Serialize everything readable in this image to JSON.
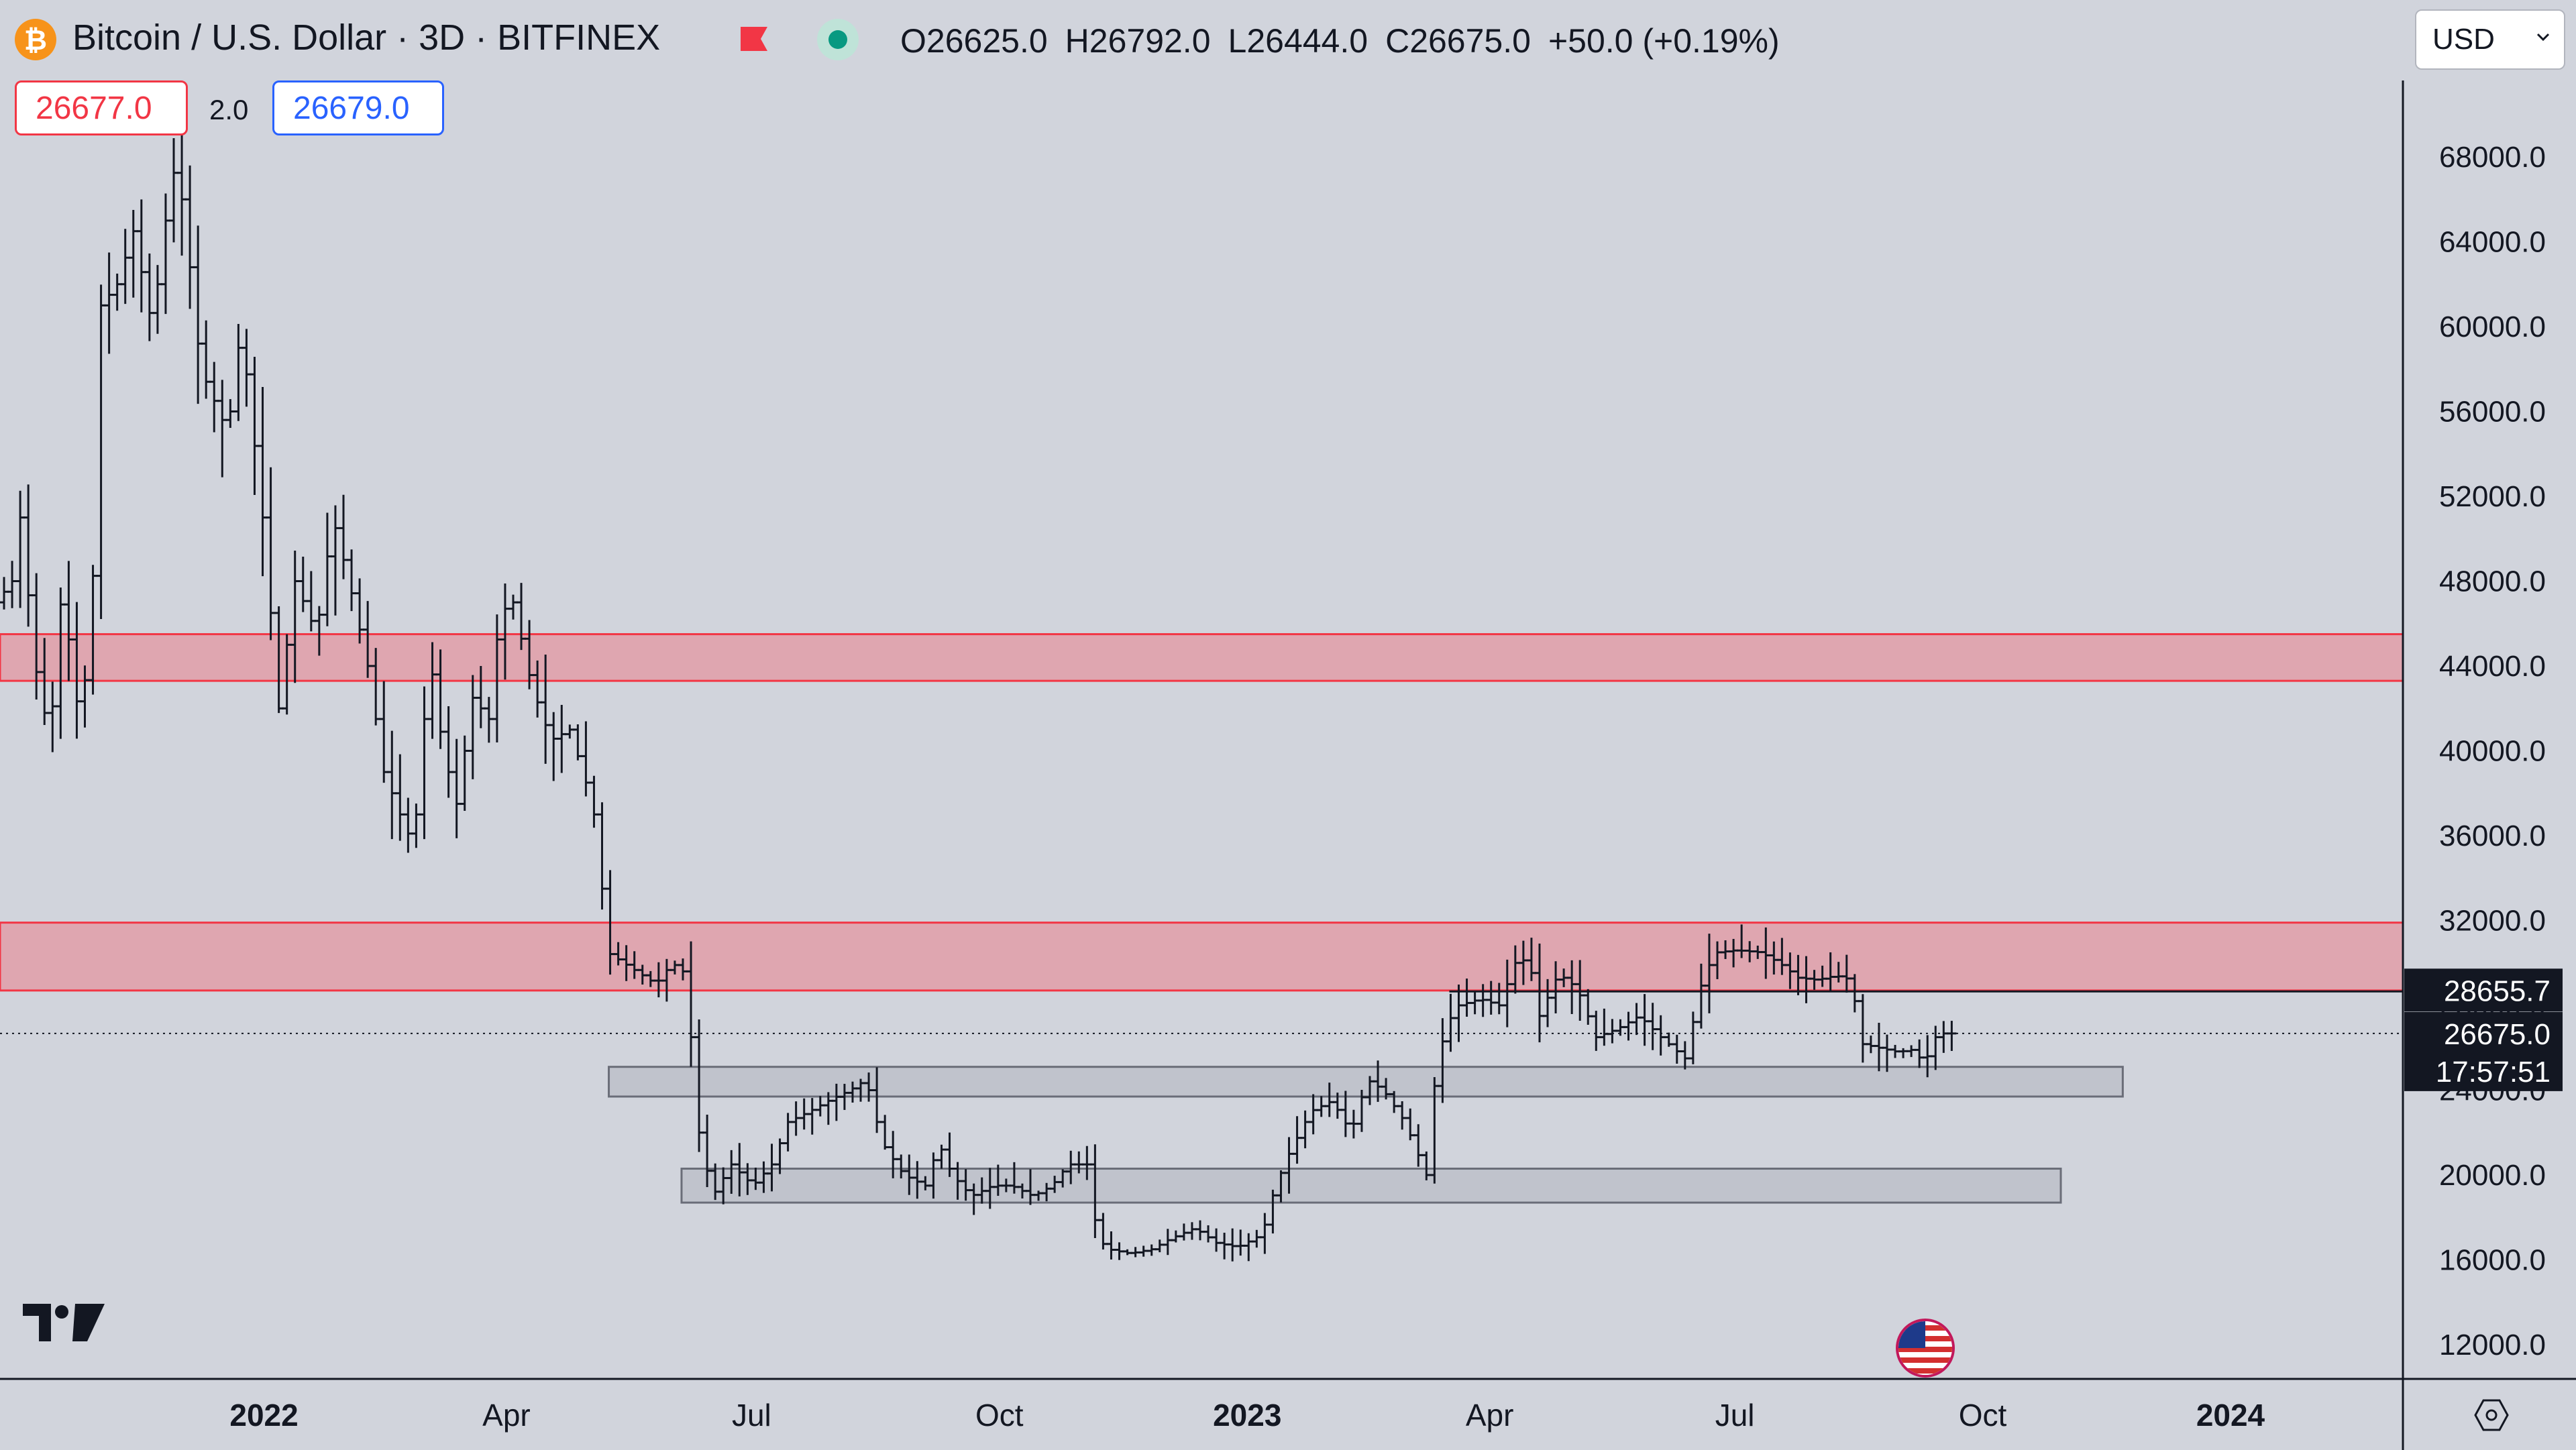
{
  "header": {
    "symbol_title": "Bitcoin / U.S. Dollar · 3D · BITFINEX",
    "logo_glyph": "₿",
    "ohlc": {
      "open_label": "O",
      "open": "26625.0",
      "high_label": "H",
      "high": "26792.0",
      "low_label": "L",
      "low": "26444.0",
      "close_label": "C",
      "close": "26675.0",
      "change": "+50.0 (+0.19%)"
    },
    "currency": "USD",
    "sell_price": "26677.0",
    "spread": "2.0",
    "buy_price": "26679.0"
  },
  "colors": {
    "background": "#d1d4dc",
    "candle": "#131722",
    "resistance_zone_fill": "#dfa6b0",
    "resistance_zone_border": "#f23645",
    "support_zone_fill": "#c0c3cc",
    "support_zone_border": "#6a6d78",
    "sell": "#f23645",
    "buy": "#2962ff"
  },
  "chart_data": {
    "type": "ohlc",
    "timeframe": "3D",
    "x_axis_labels": [
      {
        "date": "2022-01-01",
        "label": "2022",
        "bold": true
      },
      {
        "date": "2022-04-01",
        "label": "Apr",
        "bold": false
      },
      {
        "date": "2022-07-01",
        "label": "Jul",
        "bold": false
      },
      {
        "date": "2022-10-01",
        "label": "Oct",
        "bold": false
      },
      {
        "date": "2023-01-01",
        "label": "2023",
        "bold": true
      },
      {
        "date": "2023-04-01",
        "label": "Apr",
        "bold": false
      },
      {
        "date": "2023-07-01",
        "label": "Jul",
        "bold": false
      },
      {
        "date": "2023-10-01",
        "label": "Oct",
        "bold": false
      },
      {
        "date": "2024-01-01",
        "label": "2024",
        "bold": true
      }
    ],
    "x_range": [
      "2021-09-25",
      "2024-03-05"
    ],
    "y_range": [
      10000,
      71500
    ],
    "y_ticks": [
      "12000.0",
      "16000.0",
      "20000.0",
      "24000.0",
      "28000.0",
      "32000.0",
      "36000.0",
      "40000.0",
      "44000.0",
      "48000.0",
      "52000.0",
      "56000.0",
      "60000.0",
      "64000.0",
      "68000.0"
    ],
    "price_path": [
      [
        "2021-09-25",
        47000
      ],
      [
        "2021-10-01",
        48000
      ],
      [
        "2021-10-05",
        52000
      ],
      [
        "2021-10-08",
        45000
      ],
      [
        "2021-10-15",
        40500
      ],
      [
        "2021-10-20",
        48500
      ],
      [
        "2021-10-24",
        42000
      ],
      [
        "2021-10-30",
        44000
      ],
      [
        "2021-11-03",
        61000
      ],
      [
        "2021-11-09",
        62000
      ],
      [
        "2021-11-15",
        64500
      ],
      [
        "2021-11-22",
        60000
      ],
      [
        "2021-11-27",
        65000
      ],
      [
        "2021-12-01",
        68000
      ],
      [
        "2021-12-05",
        64000
      ],
      [
        "2021-12-10",
        58000
      ],
      [
        "2021-12-20",
        55000
      ],
      [
        "2021-12-25",
        60000
      ],
      [
        "2022-01-02",
        51000
      ],
      [
        "2022-01-08",
        42000
      ],
      [
        "2022-01-14",
        48000
      ],
      [
        "2022-01-22",
        45500
      ],
      [
        "2022-01-28",
        51000
      ],
      [
        "2022-02-03",
        48000
      ],
      [
        "2022-02-10",
        44000
      ],
      [
        "2022-02-16",
        39000
      ],
      [
        "2022-02-22",
        37000
      ],
      [
        "2022-02-27",
        35500
      ],
      [
        "2022-03-05",
        44500
      ],
      [
        "2022-03-10",
        40000
      ],
      [
        "2022-03-15",
        37500
      ],
      [
        "2022-03-21",
        42500
      ],
      [
        "2022-03-27",
        41500
      ],
      [
        "2022-03-31",
        46500
      ],
      [
        "2022-04-05",
        47000
      ],
      [
        "2022-04-12",
        43000
      ],
      [
        "2022-04-19",
        40500
      ],
      [
        "2022-04-26",
        41000
      ],
      [
        "2022-05-02",
        38500
      ],
      [
        "2022-05-06",
        36500
      ],
      [
        "2022-05-10",
        30500
      ],
      [
        "2022-05-16",
        30000
      ],
      [
        "2022-05-22",
        29500
      ],
      [
        "2022-05-28",
        29000
      ],
      [
        "2022-06-03",
        30000
      ],
      [
        "2022-06-08",
        29500
      ],
      [
        "2022-06-13",
        22000
      ],
      [
        "2022-06-18",
        19000
      ],
      [
        "2022-06-25",
        20500
      ],
      [
        "2022-07-03",
        19500
      ],
      [
        "2022-07-10",
        20500
      ],
      [
        "2022-07-16",
        22500
      ],
      [
        "2022-07-24",
        23000
      ],
      [
        "2022-07-31",
        23500
      ],
      [
        "2022-08-08",
        24000
      ],
      [
        "2022-08-14",
        24500
      ],
      [
        "2022-08-20",
        21500
      ],
      [
        "2022-08-28",
        20000
      ],
      [
        "2022-09-05",
        19500
      ],
      [
        "2022-09-10",
        21500
      ],
      [
        "2022-09-15",
        20000
      ],
      [
        "2022-09-22",
        19000
      ],
      [
        "2022-09-30",
        19500
      ],
      [
        "2022-10-07",
        19500
      ],
      [
        "2022-10-15",
        19000
      ],
      [
        "2022-10-22",
        19500
      ],
      [
        "2022-10-28",
        20500
      ],
      [
        "2022-11-04",
        20500
      ],
      [
        "2022-11-08",
        17000
      ],
      [
        "2022-11-12",
        16500
      ],
      [
        "2022-11-20",
        16300
      ],
      [
        "2022-11-28",
        16500
      ],
      [
        "2022-12-05",
        17000
      ],
      [
        "2022-12-14",
        17500
      ],
      [
        "2022-12-22",
        16800
      ],
      [
        "2022-12-30",
        16600
      ],
      [
        "2023-01-08",
        17200
      ],
      [
        "2023-01-13",
        19500
      ],
      [
        "2023-01-18",
        21000
      ],
      [
        "2023-01-26",
        23000
      ],
      [
        "2023-02-03",
        23500
      ],
      [
        "2023-02-10",
        22000
      ],
      [
        "2023-02-16",
        24500
      ],
      [
        "2023-02-22",
        24000
      ],
      [
        "2023-03-02",
        22500
      ],
      [
        "2023-03-10",
        20000
      ],
      [
        "2023-03-13",
        24200
      ],
      [
        "2023-03-17",
        27000
      ],
      [
        "2023-03-22",
        28000
      ],
      [
        "2023-03-30",
        28300
      ],
      [
        "2023-04-06",
        28000
      ],
      [
        "2023-04-12",
        30000
      ],
      [
        "2023-04-17",
        30200
      ],
      [
        "2023-04-21",
        27500
      ],
      [
        "2023-04-28",
        29500
      ],
      [
        "2023-05-05",
        28800
      ],
      [
        "2023-05-12",
        26500
      ],
      [
        "2023-05-20",
        26900
      ],
      [
        "2023-05-28",
        27500
      ],
      [
        "2023-06-05",
        26500
      ],
      [
        "2023-06-14",
        25500
      ],
      [
        "2023-06-21",
        29500
      ],
      [
        "2023-06-26",
        30500
      ],
      [
        "2023-07-03",
        30600
      ],
      [
        "2023-07-12",
        30500
      ],
      [
        "2023-07-19",
        30000
      ],
      [
        "2023-07-26",
        29300
      ],
      [
        "2023-08-02",
        29200
      ],
      [
        "2023-08-09",
        29400
      ],
      [
        "2023-08-15",
        29200
      ],
      [
        "2023-08-18",
        26200
      ],
      [
        "2023-08-25",
        26000
      ],
      [
        "2023-09-01",
        25800
      ],
      [
        "2023-09-06",
        25900
      ],
      [
        "2023-09-11",
        25300
      ],
      [
        "2023-09-15",
        26500
      ],
      [
        "2023-09-18",
        26675
      ]
    ],
    "zones": [
      {
        "kind": "resistance",
        "x_start": "2021-09-25",
        "x_end": "2024-03-05",
        "y_low": 43300,
        "y_high": 45500
      },
      {
        "kind": "resistance",
        "x_start": "2021-09-25",
        "x_end": "2024-03-05",
        "y_low": 28700,
        "y_high": 31900
      },
      {
        "kind": "support",
        "x_start": "2022-05-09",
        "x_end": "2023-11-22",
        "y_low": 23700,
        "y_high": 25100
      },
      {
        "kind": "support",
        "x_start": "2022-06-05",
        "x_end": "2023-10-30",
        "y_low": 18700,
        "y_high": 20300
      }
    ],
    "horizontal_line": {
      "x_start": "2023-03-17",
      "price": 28655.7,
      "label": "28655.7"
    },
    "last_price": {
      "price": 26675.0,
      "label": "26675.0",
      "countdown": "17:57:51"
    }
  }
}
